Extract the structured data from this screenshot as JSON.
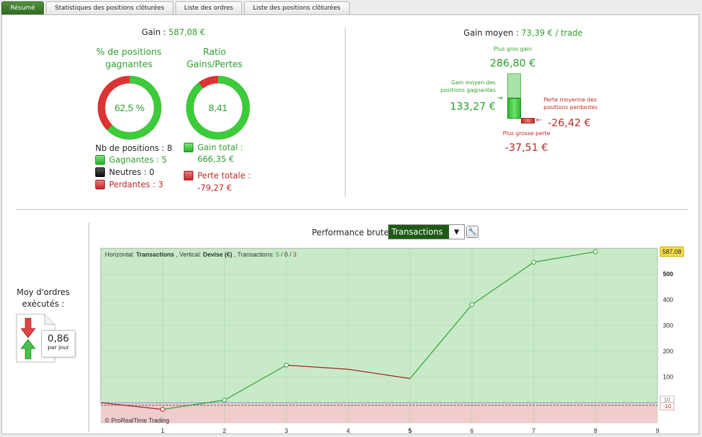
{
  "tabs": [
    {
      "label": "Résumé",
      "active": true
    },
    {
      "label": "Statistiques des positions clôturées",
      "active": false
    },
    {
      "label": "Liste des ordres",
      "active": false
    },
    {
      "label": "Liste des positions clôturées",
      "active": false
    }
  ],
  "summary": {
    "gain_label": "Gain :",
    "gain_value": "587,08 €",
    "win_pct_title_1": "% de positions",
    "win_pct_title_2": "gagnantes",
    "win_pct_value": "62,5 %",
    "win_pct_fraction": 0.625,
    "ratio_title_1": "Ratio",
    "ratio_title_2": "Gains/Pertes",
    "ratio_value": "8,41",
    "ratio_fraction": 0.894,
    "nb_positions": "Nb de positions : 8",
    "gagnantes": "Gagnantes : 5",
    "neutres": "Neutres : 0",
    "perdantes": "Perdantes : 3",
    "gain_total_1": "Gain total :",
    "gain_total_2": "666,35 €",
    "perte_totale_1": "Perte totale :",
    "perte_totale_2": "-79,27 €"
  },
  "avg": {
    "title_label": "Gain moyen :",
    "title_value": "73,39 € / trade",
    "plus_gros_gain_label": "Plus gros gain",
    "plus_gros_gain_value": "286,80 €",
    "gain_moyen_label_1": "Gain moyen des",
    "gain_moyen_label_2": "positions gagnantes",
    "gain_moyen_value": "133,27 €",
    "perte_moyenne_label_1": "Perte moyenne des",
    "perte_moyenne_label_2": "positions perdantes",
    "perte_moyenne_value": "-26,42 €",
    "plus_grosse_perte_label": "Plus grosse perte",
    "plus_grosse_perte_value": "-37,51 €"
  },
  "orders": {
    "label_1": "Moy d'ordres",
    "label_2": "exécutés :",
    "value": "0,86",
    "unit": "par jour"
  },
  "performance": {
    "label": "Performance brute",
    "select_value": "Transactions"
  },
  "colors": {
    "accent_green": "#2e9e2e",
    "loss_red": "#c02828",
    "chart_gain_bg": "#c8eac8",
    "chart_loss_bg": "#f0cccc"
  },
  "chart_data": {
    "type": "line",
    "info_prefix": "Horizontal:",
    "info_h": "Transactions",
    "info_mid": ", Vertical:",
    "info_v": "Devise (€)",
    "info_tx": ", Transactions:",
    "info_win": "5",
    "info_neu": "0",
    "info_loss": "3",
    "copyright": "© ProRealTime Trading",
    "x": [
      0,
      1,
      2,
      3,
      4,
      5,
      6,
      7,
      8
    ],
    "y": [
      0,
      -26,
      10,
      146,
      130,
      94,
      381,
      546,
      587.08
    ],
    "xlim": [
      0,
      9
    ],
    "ylim": [
      -80,
      600
    ],
    "x_ticks": [
      "1",
      "2",
      "3",
      "4",
      "5",
      "6",
      "7",
      "8",
      "9"
    ],
    "y_ticks": [
      "100",
      "200",
      "300",
      "400",
      "500"
    ],
    "last_value_label": "587,08",
    "small_level_label": "-10",
    "avg_line_label": "10",
    "grid": true
  }
}
